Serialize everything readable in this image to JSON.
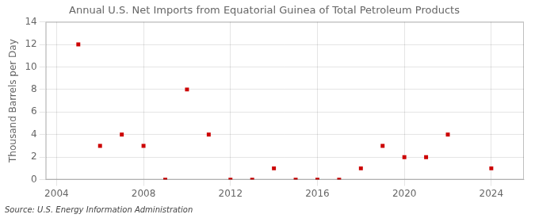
{
  "chart_data": {
    "type": "scatter",
    "title": "Annual U.S. Net Imports from Equatorial Guinea of Total Petroleum Products",
    "ylabel": "Thousand Barrels per Day",
    "annotation": "Source: U.S. Energy Information Administration",
    "x": [
      2005,
      2006,
      2007,
      2008,
      2009,
      2010,
      2011,
      2012,
      2013,
      2014,
      2015,
      2016,
      2017,
      2018,
      2019,
      2020,
      2021,
      2022,
      2024
    ],
    "values": [
      12,
      3,
      4,
      3,
      0,
      8,
      4,
      0,
      0,
      1,
      0,
      0,
      0,
      1,
      3,
      2,
      2,
      4,
      1
    ],
    "color": "#cc0000",
    "marker": "square",
    "xlim": [
      2003.5,
      2025.5
    ],
    "xticks": [
      2004,
      2008,
      2012,
      2016,
      2020,
      2024
    ],
    "ylim": [
      0,
      14
    ],
    "yticks": [
      0,
      2,
      4,
      6,
      8,
      10,
      12,
      14
    ],
    "grid": true
  }
}
